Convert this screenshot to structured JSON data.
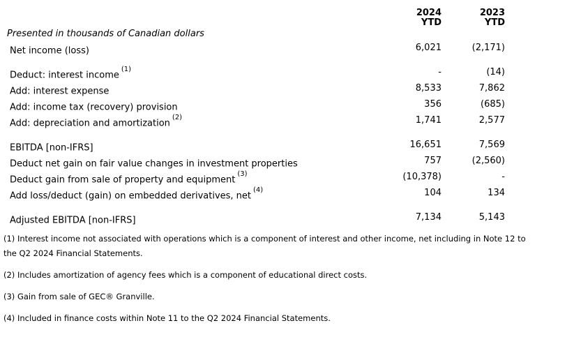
{
  "document": {
    "caption": "Presented in thousands of Canadian dollars"
  },
  "table": {
    "columns": [
      {
        "year": "2024",
        "period": "YTD"
      },
      {
        "year": "2023",
        "period": "YTD"
      }
    ],
    "rows": [
      {
        "label": "Net income (loss)",
        "v2024": "6,021",
        "v2023": "(2,171)"
      },
      {
        "label": "Deduct: interest income",
        "sup": "(1)",
        "v2024": "-",
        "v2023": "(14)"
      },
      {
        "label": "Add: interest expense",
        "v2024": "8,533",
        "v2023": "7,862"
      },
      {
        "label": "Add: income tax (recovery) provision",
        "v2024": "356",
        "v2023": "(685)"
      },
      {
        "label": "Add: depreciation and amortization",
        "sup": "(2)",
        "v2024": "1,741",
        "v2023": "2,577"
      },
      {
        "label": "EBITDA [non-IFRS]",
        "v2024": "16,651",
        "v2023": "7,569"
      },
      {
        "label": "Deduct net gain on fair value changes in investment properties",
        "v2024": "757",
        "v2023": "(2,560)"
      },
      {
        "label": "Deduct gain from sale of property and equipment",
        "sup": "(3)",
        "v2024": "(10,378)",
        "v2023": "-"
      },
      {
        "label": "Add loss/deduct (gain) on embedded derivatives, net",
        "sup": "(4)",
        "v2024": "104",
        "v2023": "134"
      },
      {
        "label": "Adjusted EBITDA [non-IFRS]",
        "v2024": "7,134",
        "v2023": "5,143"
      }
    ]
  },
  "footnotes": [
    {
      "lines": [
        "(1) Interest income not associated with operations which is a component of interest and other income, net including in Note 12 to",
        "the Q2 2024 Financial Statements."
      ]
    },
    {
      "lines": [
        "(2) Includes amortization of agency fees which is a component of educational direct costs."
      ]
    },
    {
      "lines": [
        "(3) Gain from sale of GEC® Granville."
      ]
    },
    {
      "lines": [
        "(4) Included in finance costs within Note 11 to the Q2 2024 Financial Statements."
      ]
    }
  ]
}
